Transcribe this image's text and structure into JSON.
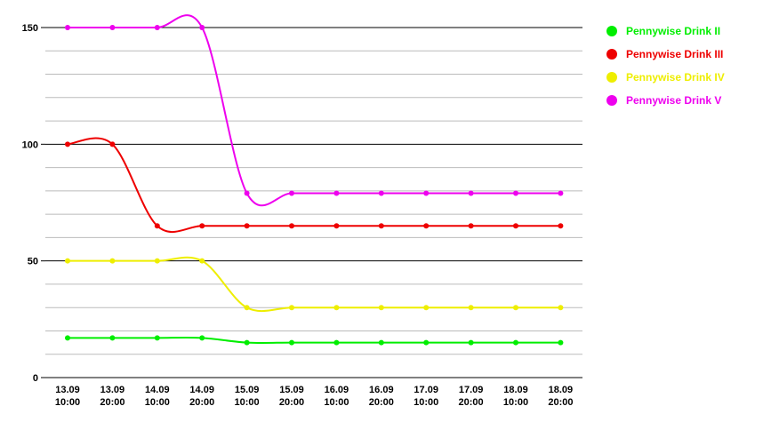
{
  "chart_data": {
    "type": "line",
    "title": "",
    "xlabel": "",
    "ylabel": "",
    "categories": [
      [
        "13.09",
        "10:00"
      ],
      [
        "13.09",
        "20:00"
      ],
      [
        "14.09",
        "10:00"
      ],
      [
        "14.09",
        "20:00"
      ],
      [
        "15.09",
        "10:00"
      ],
      [
        "15.09",
        "20:00"
      ],
      [
        "16.09",
        "10:00"
      ],
      [
        "16.09",
        "20:00"
      ],
      [
        "17.09",
        "10:00"
      ],
      [
        "17.09",
        "20:00"
      ],
      [
        "18.09",
        "10:00"
      ],
      [
        "18.09",
        "20:00"
      ]
    ],
    "ylim": [
      0,
      150
    ],
    "y_major_ticks": [
      0,
      50,
      100,
      150
    ],
    "y_minor_step": 10,
    "grid": true,
    "legend_position": "top-right",
    "series": [
      {
        "name": "Pennywise Drink II",
        "color": "#00ee00",
        "values": [
          17,
          17,
          17,
          17,
          15,
          15,
          15,
          15,
          15,
          15,
          15,
          15
        ]
      },
      {
        "name": "Pennywise Drink III",
        "color": "#ee0000",
        "values": [
          100,
          100,
          65,
          65,
          65,
          65,
          65,
          65,
          65,
          65,
          65,
          65
        ]
      },
      {
        "name": "Pennywise Drink IV",
        "color": "#eeee00",
        "values": [
          50,
          50,
          50,
          50,
          30,
          30,
          30,
          30,
          30,
          30,
          30,
          30
        ]
      },
      {
        "name": "Pennywise Drink V",
        "color": "#ee00ee",
        "values": [
          150,
          150,
          150,
          150,
          79,
          79,
          79,
          79,
          79,
          79,
          79,
          79
        ]
      }
    ]
  }
}
